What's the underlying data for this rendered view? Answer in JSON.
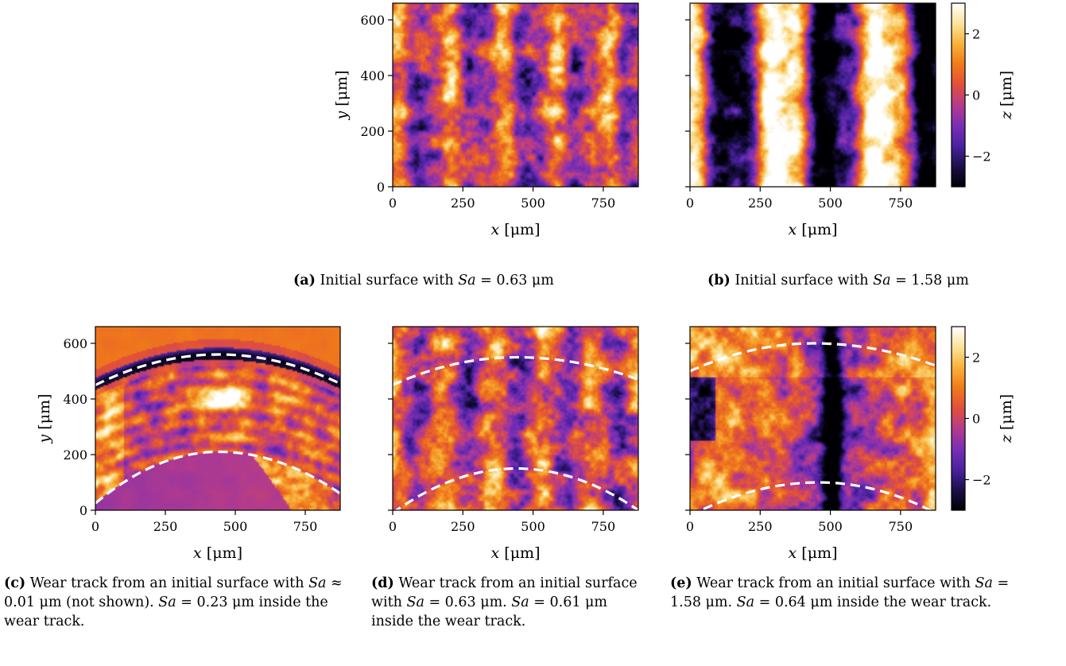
{
  "colors": {
    "colormap": [
      "#000004",
      "#1c0f4a",
      "#4a22a0",
      "#7a2fb5",
      "#b43b8c",
      "#e1503a",
      "#f07a1a",
      "#f8b23a",
      "#fbe39b",
      "#ffffff"
    ]
  },
  "colorbar": {
    "label": "z [μm]",
    "ticks": [
      "2",
      "0",
      "−2"
    ]
  },
  "chart_data": [
    {
      "id": "a",
      "type": "heatmap",
      "xlabel": "x [μm]",
      "ylabel": "y [μm]",
      "xlim": [
        0,
        875
      ],
      "ylim": [
        0,
        660
      ],
      "zlim": [
        -3,
        3
      ],
      "xticks": [
        "0",
        "250",
        "500",
        "750"
      ],
      "yticks": [
        "0",
        "200",
        "400",
        "600"
      ],
      "surface": "vertical-stripes",
      "sa_um": 0.63,
      "caption": {
        "tag": "(a)",
        "pre": "Initial surface with",
        "var": "Sa",
        "rest": " = 0.63 μm"
      }
    },
    {
      "id": "b",
      "type": "heatmap",
      "xlabel": "x [μm]",
      "xlim": [
        0,
        875
      ],
      "ylim": [
        0,
        660
      ],
      "zlim": [
        -3,
        3
      ],
      "xticks": [
        "0",
        "250",
        "500",
        "750"
      ],
      "surface": "vertical-stripes",
      "sa_um": 1.58,
      "caption": {
        "tag": "(b)",
        "pre": "Initial surface with",
        "var": "Sa",
        "rest": " = 1.58 μm"
      }
    },
    {
      "id": "c",
      "type": "heatmap",
      "xlabel": "x [μm]",
      "ylabel": "y [μm]",
      "xlim": [
        0,
        875
      ],
      "ylim": [
        0,
        660
      ],
      "zlim": [
        -3,
        3
      ],
      "xticks": [
        "0",
        "250",
        "500",
        "750"
      ],
      "yticks": [
        "0",
        "200",
        "400",
        "600"
      ],
      "surface": "wear-track",
      "sa_um": 0.23,
      "track_boundaries": [
        {
          "x_peak": 440,
          "y_peak": 560,
          "y_left": 450,
          "y_right": 455
        },
        {
          "x_peak": 440,
          "y_peak": 210,
          "y_left": 25,
          "y_right": 60
        }
      ],
      "caption": {
        "tag": "(c)",
        "lines": [
          [
            {
              "t": "Wear track from an initial surface with "
            },
            {
              "t": "Sa",
              "i": true
            },
            {
              "t": " ≈"
            }
          ],
          [
            {
              "t": "0.01 μm (not shown). "
            },
            {
              "t": "Sa",
              "i": true
            },
            {
              "t": " = 0.23 μm inside the"
            }
          ],
          [
            {
              "t": "wear track."
            }
          ]
        ]
      }
    },
    {
      "id": "d",
      "type": "heatmap",
      "xlabel": "x [μm]",
      "xlim": [
        0,
        875
      ],
      "ylim": [
        0,
        660
      ],
      "zlim": [
        -3,
        3
      ],
      "xticks": [
        "0",
        "250",
        "500",
        "750"
      ],
      "surface": "wear-track",
      "sa_um": 0.61,
      "track_boundaries": [
        {
          "x_peak": 440,
          "y_peak": 550,
          "y_left": 450,
          "y_right": 470
        },
        {
          "x_peak": 440,
          "y_peak": 150,
          "y_left": -10,
          "y_right": 0
        }
      ],
      "caption": {
        "tag": "(d)",
        "lines": [
          [
            {
              "t": "Wear track from an initial surface"
            }
          ],
          [
            {
              "t": "with "
            },
            {
              "t": "Sa",
              "i": true
            },
            {
              "t": " = 0.63 μm. "
            },
            {
              "t": "Sa",
              "i": true
            },
            {
              "t": " = 0.61 μm"
            }
          ],
          [
            {
              "t": "inside the wear track."
            }
          ]
        ]
      }
    },
    {
      "id": "e",
      "type": "heatmap",
      "xlabel": "x [μm]",
      "xlim": [
        0,
        875
      ],
      "ylim": [
        0,
        660
      ],
      "zlim": [
        -3,
        3
      ],
      "xticks": [
        "0",
        "250",
        "500",
        "750"
      ],
      "surface": "wear-track",
      "sa_um": 0.64,
      "track_boundaries": [
        {
          "x_peak": 440,
          "y_peak": 600,
          "y_left": 500,
          "y_right": 520
        },
        {
          "x_peak": 460,
          "y_peak": 100,
          "y_left": -20,
          "y_right": -10
        }
      ],
      "caption": {
        "tag": "(e)",
        "lines": [
          [
            {
              "t": "Wear track from an initial surface with "
            },
            {
              "t": "Sa",
              "i": true
            },
            {
              "t": " ="
            }
          ],
          [
            {
              "t": "1.58 μm. "
            },
            {
              "t": "Sa",
              "i": true
            },
            {
              "t": " = 0.64 μm inside the wear track."
            }
          ]
        ]
      }
    }
  ]
}
